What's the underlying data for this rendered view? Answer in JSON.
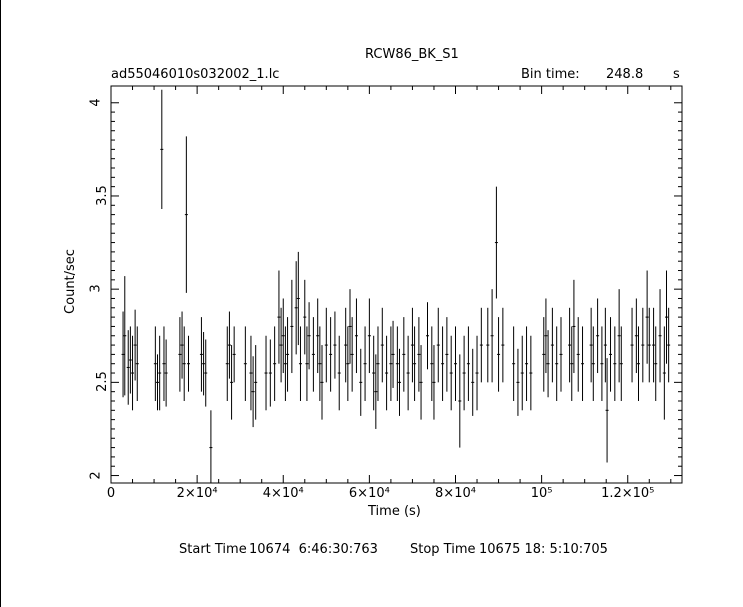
{
  "chart_data": {
    "type": "scatter",
    "title": "RCW86_BK_S1",
    "file_label": "ad55046010s032002_1.lc",
    "bin_time_label": "Bin time:",
    "bin_time_value": "248.8",
    "bin_time_unit": "s",
    "xlabel": "Time (s)",
    "ylabel": "Count/sec",
    "xlim": [
      0,
      132600
    ],
    "ylim": [
      1.96,
      4.09
    ],
    "x_ticks": [
      {
        "value": 0,
        "label": "0"
      },
      {
        "value": 20000,
        "label": "2×10⁴"
      },
      {
        "value": 40000,
        "label": "4×10⁴"
      },
      {
        "value": 60000,
        "label": "6×10⁴"
      },
      {
        "value": 80000,
        "label": "8×10⁴"
      },
      {
        "value": 100000,
        "label": "10⁵"
      },
      {
        "value": 120000,
        "label": "1.2×10⁵"
      }
    ],
    "y_ticks": [
      {
        "value": 2,
        "label": "2"
      },
      {
        "value": 2.5,
        "label": "2.5"
      },
      {
        "value": 3,
        "label": "3"
      },
      {
        "value": 3.5,
        "label": "3.5"
      },
      {
        "value": 4,
        "label": "4"
      }
    ],
    "grid": false,
    "legend": "none",
    "points": [
      [
        2800,
        2.65,
        0.23
      ],
      [
        3200,
        2.75,
        0.32
      ],
      [
        4000,
        2.58,
        0.2
      ],
      [
        4500,
        2.62,
        0.18
      ],
      [
        5000,
        2.55,
        0.2
      ],
      [
        5600,
        2.7,
        0.19
      ],
      [
        6100,
        2.6,
        0.2
      ],
      [
        10300,
        2.6,
        0.2
      ],
      [
        10800,
        2.5,
        0.15
      ],
      [
        11300,
        2.55,
        0.2
      ],
      [
        11800,
        3.75,
        0.32
      ],
      [
        12300,
        2.6,
        0.2
      ],
      [
        12800,
        2.55,
        0.18
      ],
      [
        16000,
        2.65,
        0.2
      ],
      [
        16500,
        2.7,
        0.18
      ],
      [
        17000,
        2.6,
        0.2
      ],
      [
        17500,
        3.4,
        0.42
      ],
      [
        18000,
        2.6,
        0.15
      ],
      [
        21000,
        2.65,
        0.2
      ],
      [
        21500,
        2.6,
        0.17
      ],
      [
        22000,
        2.55,
        0.18
      ],
      [
        23200,
        2.15,
        0.2
      ],
      [
        27000,
        2.6,
        0.2
      ],
      [
        27500,
        2.7,
        0.18
      ],
      [
        28000,
        2.5,
        0.2
      ],
      [
        28600,
        2.65,
        0.15
      ],
      [
        31200,
        2.6,
        0.2
      ],
      [
        32500,
        2.55,
        0.2
      ],
      [
        33000,
        2.45,
        0.19
      ],
      [
        33600,
        2.5,
        0.2
      ],
      [
        36000,
        2.55,
        0.2
      ],
      [
        37000,
        2.55,
        0.18
      ],
      [
        38000,
        2.6,
        0.2
      ],
      [
        39000,
        2.85,
        0.25
      ],
      [
        39500,
        2.7,
        0.2
      ],
      [
        40000,
        2.75,
        0.2
      ],
      [
        40500,
        2.6,
        0.2
      ],
      [
        41000,
        2.65,
        0.2
      ],
      [
        42000,
        2.8,
        0.25
      ],
      [
        43000,
        2.9,
        0.25
      ],
      [
        43500,
        2.95,
        0.25
      ],
      [
        44000,
        2.6,
        0.2
      ],
      [
        45000,
        2.85,
        0.2
      ],
      [
        45500,
        2.6,
        0.2
      ],
      [
        46000,
        2.75,
        0.18
      ],
      [
        47000,
        2.65,
        0.2
      ],
      [
        48000,
        2.75,
        0.2
      ],
      [
        48500,
        2.6,
        0.2
      ],
      [
        49000,
        2.5,
        0.2
      ],
      [
        50000,
        2.7,
        0.2
      ],
      [
        51000,
        2.65,
        0.2
      ],
      [
        52000,
        2.7,
        0.18
      ],
      [
        53000,
        2.55,
        0.2
      ],
      [
        54500,
        2.7,
        0.2
      ],
      [
        55000,
        2.6,
        0.2
      ],
      [
        55500,
        2.8,
        0.2
      ],
      [
        56000,
        2.65,
        0.2
      ],
      [
        57000,
        2.75,
        0.2
      ],
      [
        58000,
        2.5,
        0.18
      ],
      [
        59000,
        2.6,
        0.2
      ],
      [
        60000,
        2.75,
        0.2
      ],
      [
        61000,
        2.55,
        0.2
      ],
      [
        61500,
        2.45,
        0.2
      ],
      [
        62000,
        2.6,
        0.2
      ],
      [
        63000,
        2.7,
        0.2
      ],
      [
        64000,
        2.55,
        0.2
      ],
      [
        65000,
        2.6,
        0.2
      ],
      [
        65500,
        2.65,
        0.18
      ],
      [
        66500,
        2.6,
        0.2
      ],
      [
        67000,
        2.5,
        0.18
      ],
      [
        68000,
        2.65,
        0.2
      ],
      [
        69000,
        2.55,
        0.2
      ],
      [
        70000,
        2.7,
        0.2
      ],
      [
        70500,
        2.6,
        0.2
      ],
      [
        71500,
        2.65,
        0.2
      ],
      [
        72000,
        2.5,
        0.2
      ],
      [
        73500,
        2.75,
        0.18
      ],
      [
        74500,
        2.6,
        0.2
      ],
      [
        75000,
        2.5,
        0.2
      ],
      [
        76000,
        2.7,
        0.2
      ],
      [
        77000,
        2.6,
        0.2
      ],
      [
        78000,
        2.65,
        0.2
      ],
      [
        79000,
        2.55,
        0.2
      ],
      [
        80000,
        2.6,
        0.2
      ],
      [
        81000,
        2.4,
        0.25
      ],
      [
        82000,
        2.55,
        0.2
      ],
      [
        83000,
        2.6,
        0.2
      ],
      [
        84000,
        2.5,
        0.18
      ],
      [
        85000,
        2.55,
        0.2
      ],
      [
        86000,
        2.7,
        0.2
      ],
      [
        87500,
        2.7,
        0.2
      ],
      [
        88500,
        2.75,
        0.25
      ],
      [
        89500,
        3.25,
        0.3
      ],
      [
        90000,
        2.65,
        0.2
      ],
      [
        91000,
        2.7,
        0.2
      ],
      [
        93500,
        2.6,
        0.2
      ],
      [
        94500,
        2.5,
        0.18
      ],
      [
        95500,
        2.55,
        0.2
      ],
      [
        96500,
        2.6,
        0.2
      ],
      [
        97500,
        2.55,
        0.2
      ],
      [
        100500,
        2.65,
        0.2
      ],
      [
        101000,
        2.75,
        0.2
      ],
      [
        101500,
        2.6,
        0.18
      ],
      [
        102500,
        2.7,
        0.2
      ],
      [
        103500,
        2.6,
        0.2
      ],
      [
        104500,
        2.65,
        0.2
      ],
      [
        106500,
        2.7,
        0.2
      ],
      [
        107000,
        2.6,
        0.2
      ],
      [
        107500,
        2.8,
        0.25
      ],
      [
        108500,
        2.65,
        0.2
      ],
      [
        109500,
        2.6,
        0.2
      ],
      [
        111500,
        2.7,
        0.2
      ],
      [
        112000,
        2.6,
        0.2
      ],
      [
        113000,
        2.75,
        0.2
      ],
      [
        114000,
        2.6,
        0.2
      ],
      [
        114800,
        2.7,
        0.2
      ],
      [
        115200,
        2.35,
        0.28
      ],
      [
        116000,
        2.65,
        0.2
      ],
      [
        117000,
        2.6,
        0.2
      ],
      [
        118000,
        2.75,
        0.25
      ],
      [
        118500,
        2.6,
        0.2
      ],
      [
        121000,
        2.7,
        0.2
      ],
      [
        122000,
        2.75,
        0.2
      ],
      [
        122500,
        2.6,
        0.2
      ],
      [
        123500,
        2.7,
        0.2
      ],
      [
        124500,
        2.85,
        0.25
      ],
      [
        125000,
        2.7,
        0.2
      ],
      [
        126000,
        2.7,
        0.2
      ],
      [
        126500,
        2.6,
        0.2
      ],
      [
        127500,
        2.75,
        0.25
      ],
      [
        128500,
        2.55,
        0.25
      ],
      [
        129000,
        2.85,
        0.25
      ],
      [
        129500,
        2.7,
        0.2
      ]
    ]
  },
  "footer": {
    "start_label": "Start Time",
    "start_value": "10674  6:46:30:763",
    "stop_label": "Stop Time",
    "stop_value": "10675 18: 5:10:705"
  }
}
